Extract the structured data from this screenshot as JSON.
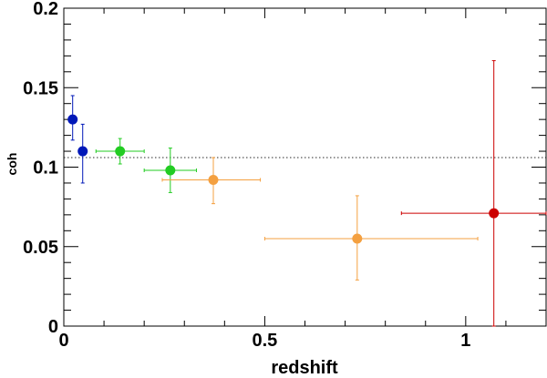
{
  "chart_data": {
    "type": "scatter",
    "title": "",
    "xlabel": "redshift",
    "ylabel": "coh",
    "xlim": [
      0,
      1.2
    ],
    "ylim": [
      0,
      0.2
    ],
    "x_major_ticks": [
      0,
      0.5,
      1
    ],
    "x_tick_labels": [
      "0",
      "0.5",
      "1"
    ],
    "y_major_ticks": [
      0,
      0.05,
      0.1,
      0.15,
      0.2
    ],
    "y_tick_labels": [
      "0",
      "0.05",
      "0.1",
      "0.15",
      "0.2"
    ],
    "reference_line": {
      "y": 0.106,
      "style": "dotted",
      "color": "#555555"
    },
    "points": [
      {
        "x": 0.022,
        "y": 0.13,
        "xerr": [
          0.0,
          0.0
        ],
        "yerr_low": 0.013,
        "yerr_high": 0.015,
        "color": "#0018b8"
      },
      {
        "x": 0.047,
        "y": 0.11,
        "xerr": [
          0.0,
          0.0
        ],
        "yerr_low": 0.02,
        "yerr_high": 0.017,
        "color": "#0018b8"
      },
      {
        "x": 0.14,
        "y": 0.11,
        "xerr": [
          0.06,
          0.06
        ],
        "yerr_low": 0.008,
        "yerr_high": 0.008,
        "color": "#22cc22"
      },
      {
        "x": 0.265,
        "y": 0.098,
        "xerr": [
          0.065,
          0.065
        ],
        "yerr_low": 0.014,
        "yerr_high": 0.014,
        "color": "#22cc22"
      },
      {
        "x": 0.372,
        "y": 0.092,
        "xerr": [
          0.127,
          0.117
        ],
        "yerr_low": 0.015,
        "yerr_high": 0.014,
        "color": "#f4a040"
      },
      {
        "x": 0.73,
        "y": 0.055,
        "xerr": [
          0.23,
          0.3
        ],
        "yerr_low": 0.026,
        "yerr_high": 0.027,
        "color": "#f4a040"
      },
      {
        "x": 1.07,
        "y": 0.071,
        "xerr": [
          0.23,
          0.13
        ],
        "yerr_low": 0.071,
        "yerr_high": 0.096,
        "color": "#cc0000"
      }
    ]
  }
}
